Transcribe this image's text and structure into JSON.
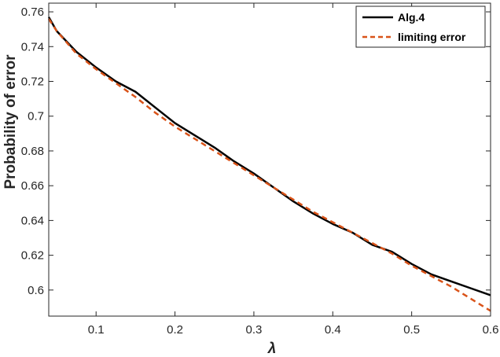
{
  "chart_data": {
    "type": "line",
    "xlabel": "λ",
    "ylabel": "Probability of error",
    "xlim": [
      0.04,
      0.6
    ],
    "ylim": [
      0.585,
      0.765
    ],
    "x_ticks": [
      0.1,
      0.2,
      0.3,
      0.4,
      0.5,
      0.6
    ],
    "x_tick_labels": [
      "0.1",
      "0.2",
      "0.3",
      "0.4",
      "0.5",
      "0.6"
    ],
    "y_ticks": [
      0.6,
      0.62,
      0.64,
      0.66,
      0.68,
      0.7,
      0.72,
      0.74,
      0.76
    ],
    "y_tick_labels": [
      "0.6",
      "0.62",
      "0.64",
      "0.66",
      "0.68",
      "0.7",
      "0.72",
      "0.74",
      "0.76"
    ],
    "grid": false,
    "legend_position": "top-right",
    "series": [
      {
        "name": "Alg.4",
        "style": "solid",
        "color": "#000000",
        "x": [
          0.04,
          0.05,
          0.075,
          0.1,
          0.125,
          0.15,
          0.175,
          0.2,
          0.225,
          0.25,
          0.275,
          0.3,
          0.325,
          0.35,
          0.375,
          0.4,
          0.425,
          0.45,
          0.475,
          0.5,
          0.525,
          0.55,
          0.575,
          0.6
        ],
        "y": [
          0.757,
          0.749,
          0.737,
          0.728,
          0.72,
          0.714,
          0.705,
          0.696,
          0.689,
          0.682,
          0.674,
          0.667,
          0.659,
          0.651,
          0.644,
          0.638,
          0.633,
          0.626,
          0.622,
          0.615,
          0.609,
          0.605,
          0.601,
          0.597
        ]
      },
      {
        "name": "limiting error",
        "style": "dashed",
        "color": "#D95319",
        "x": [
          0.04,
          0.05,
          0.075,
          0.1,
          0.125,
          0.15,
          0.175,
          0.2,
          0.225,
          0.25,
          0.275,
          0.3,
          0.325,
          0.35,
          0.375,
          0.4,
          0.425,
          0.45,
          0.475,
          0.5,
          0.525,
          0.55,
          0.575,
          0.6
        ],
        "y": [
          0.756,
          0.749,
          0.736,
          0.727,
          0.719,
          0.711,
          0.702,
          0.694,
          0.687,
          0.68,
          0.673,
          0.666,
          0.659,
          0.652,
          0.645,
          0.639,
          0.633,
          0.627,
          0.621,
          0.614,
          0.608,
          0.602,
          0.595,
          0.588
        ]
      }
    ]
  }
}
